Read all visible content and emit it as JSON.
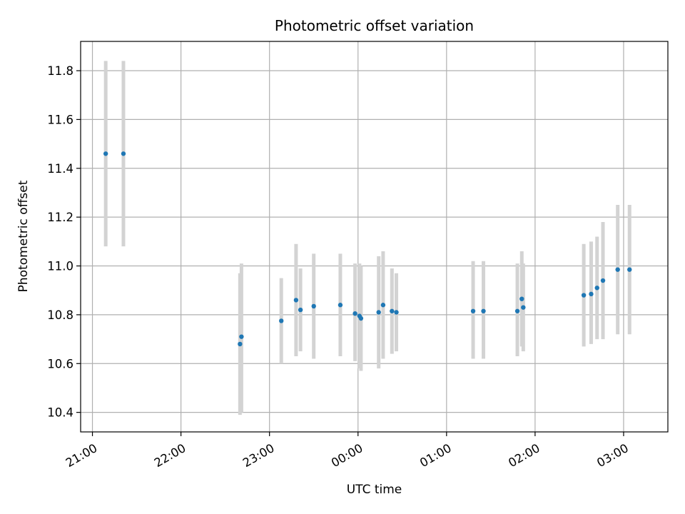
{
  "chart_data": {
    "type": "scatter",
    "title": "Photometric offset variation",
    "xlabel": "UTC time",
    "ylabel": "Photometric offset",
    "x_axis": {
      "kind": "time",
      "range": [
        "20:52",
        "03:30"
      ],
      "ticks": [
        "21:00",
        "22:00",
        "23:00",
        "00:00",
        "01:00",
        "02:00",
        "03:00"
      ]
    },
    "y_axis": {
      "range": [
        10.32,
        11.92
      ],
      "ticks": [
        "10.4",
        "10.6",
        "10.8",
        "11.0",
        "11.2",
        "11.4",
        "11.6",
        "11.8"
      ]
    },
    "grid": true,
    "colors": {
      "marker": "#1f77b4",
      "errorbar": "#d3d3d3",
      "grid": "#b0b0b0"
    },
    "series": [
      {
        "points": [
          {
            "x": "21:09",
            "y": 11.46,
            "ylo": 11.08,
            "yhi": 11.84
          },
          {
            "x": "21:21",
            "y": 11.46,
            "ylo": 11.08,
            "yhi": 11.84
          },
          {
            "x": "22:40",
            "y": 10.68,
            "ylo": 10.39,
            "yhi": 10.97
          },
          {
            "x": "22:41",
            "y": 10.71,
            "ylo": 10.4,
            "yhi": 11.01
          },
          {
            "x": "23:08",
            "y": 10.775,
            "ylo": 10.6,
            "yhi": 10.95
          },
          {
            "x": "23:18",
            "y": 10.86,
            "ylo": 10.63,
            "yhi": 11.09
          },
          {
            "x": "23:21",
            "y": 10.82,
            "ylo": 10.65,
            "yhi": 10.99
          },
          {
            "x": "23:30",
            "y": 10.835,
            "ylo": 10.62,
            "yhi": 11.05
          },
          {
            "x": "23:48",
            "y": 10.84,
            "ylo": 10.63,
            "yhi": 11.05
          },
          {
            "x": "23:58",
            "y": 10.805,
            "ylo": 10.61,
            "yhi": 11.01
          },
          {
            "x": "00:01",
            "y": 10.795,
            "ylo": 10.58,
            "yhi": 11.01
          },
          {
            "x": "00:02",
            "y": 10.785,
            "ylo": 10.57,
            "yhi": 11.0
          },
          {
            "x": "00:14",
            "y": 10.81,
            "ylo": 10.58,
            "yhi": 11.04
          },
          {
            "x": "00:17",
            "y": 10.84,
            "ylo": 10.62,
            "yhi": 11.06
          },
          {
            "x": "00:23",
            "y": 10.815,
            "ylo": 10.64,
            "yhi": 10.99
          },
          {
            "x": "00:26",
            "y": 10.81,
            "ylo": 10.65,
            "yhi": 10.97
          },
          {
            "x": "01:18",
            "y": 10.815,
            "ylo": 10.62,
            "yhi": 11.02
          },
          {
            "x": "01:25",
            "y": 10.815,
            "ylo": 10.62,
            "yhi": 11.02
          },
          {
            "x": "01:48",
            "y": 10.815,
            "ylo": 10.63,
            "yhi": 11.01
          },
          {
            "x": "01:51",
            "y": 10.865,
            "ylo": 10.67,
            "yhi": 11.06
          },
          {
            "x": "01:52",
            "y": 10.83,
            "ylo": 10.65,
            "yhi": 11.01
          },
          {
            "x": "02:33",
            "y": 10.88,
            "ylo": 10.67,
            "yhi": 11.09
          },
          {
            "x": "02:38",
            "y": 10.885,
            "ylo": 10.68,
            "yhi": 11.1
          },
          {
            "x": "02:42",
            "y": 10.91,
            "ylo": 10.7,
            "yhi": 11.12
          },
          {
            "x": "02:46",
            "y": 10.94,
            "ylo": 10.7,
            "yhi": 11.18
          },
          {
            "x": "02:56",
            "y": 10.985,
            "ylo": 10.72,
            "yhi": 11.25
          },
          {
            "x": "03:04",
            "y": 10.985,
            "ylo": 10.72,
            "yhi": 11.25
          }
        ]
      }
    ]
  }
}
